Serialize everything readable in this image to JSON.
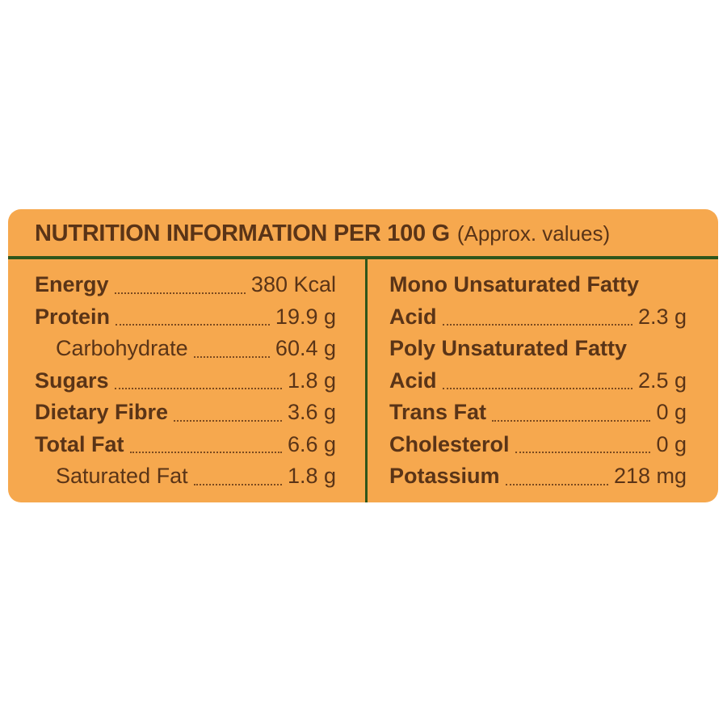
{
  "colors": {
    "page": "#ffffff",
    "background": "#f6a84e",
    "text": "#5a3417",
    "divider": "#2f561b",
    "leader": "#7b4a1f"
  },
  "header": {
    "title": "NUTRITION INFORMATION PER 100 G",
    "note": "(Approx. values)"
  },
  "left_rows": [
    {
      "label": "Energy",
      "value": "380 Kcal"
    },
    {
      "label": "Protein",
      "value": "19.9 g"
    },
    {
      "label": "Carbohydrate",
      "value": "60.4 g"
    },
    {
      "label": "Sugars",
      "value": "1.8 g"
    },
    {
      "label": "Dietary Fibre",
      "value": "3.6 g"
    },
    {
      "label": "Total Fat",
      "value": "6.6 g"
    },
    {
      "label": "Saturated Fat",
      "value": "1.8 g"
    }
  ],
  "right_rows": [
    {
      "label": "Mono Unsaturated Fatty",
      "value": ""
    },
    {
      "label": "Acid",
      "value": "2.3 g"
    },
    {
      "label": "Poly Unsaturated Fatty",
      "value": ""
    },
    {
      "label": "Acid",
      "value": "2.5 g"
    },
    {
      "label": "Trans Fat",
      "value": "0 g"
    },
    {
      "label": "Cholesterol",
      "value": "0 g"
    },
    {
      "label": "Potassium",
      "value": "218 mg"
    }
  ]
}
